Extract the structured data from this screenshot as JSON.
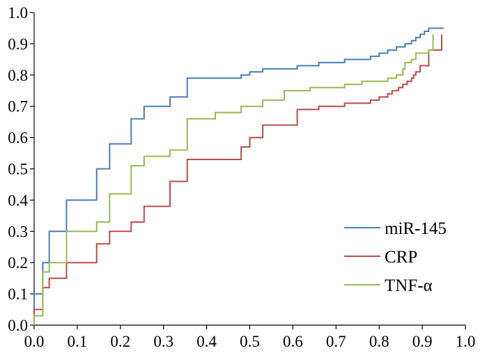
{
  "chart_data": {
    "type": "line",
    "step": true,
    "title": "",
    "xlabel": "",
    "ylabel": "",
    "xlim": [
      0.0,
      1.0
    ],
    "ylim": [
      0.0,
      1.0
    ],
    "x_ticks": [
      "0.0",
      "0.1",
      "0.2",
      "0.3",
      "0.4",
      "0.5",
      "0.6",
      "0.7",
      "0.8",
      "0.9",
      "1.0"
    ],
    "y_ticks": [
      "0.0",
      "0.1",
      "0.2",
      "0.3",
      "0.4",
      "0.5",
      "0.6",
      "0.7",
      "0.8",
      "0.9",
      "1.0"
    ],
    "grid": false,
    "legend_position": "bottom-right",
    "series": [
      {
        "name": "miR-145",
        "color": "#4a7ebb",
        "points": [
          [
            0.0,
            0.0
          ],
          [
            0.0,
            0.1
          ],
          [
            0.02,
            0.1
          ],
          [
            0.02,
            0.2
          ],
          [
            0.035,
            0.2
          ],
          [
            0.035,
            0.3
          ],
          [
            0.075,
            0.3
          ],
          [
            0.075,
            0.4
          ],
          [
            0.145,
            0.4
          ],
          [
            0.145,
            0.5
          ],
          [
            0.175,
            0.5
          ],
          [
            0.175,
            0.58
          ],
          [
            0.225,
            0.58
          ],
          [
            0.225,
            0.66
          ],
          [
            0.255,
            0.66
          ],
          [
            0.255,
            0.7
          ],
          [
            0.315,
            0.7
          ],
          [
            0.315,
            0.73
          ],
          [
            0.355,
            0.73
          ],
          [
            0.355,
            0.79
          ],
          [
            0.48,
            0.79
          ],
          [
            0.48,
            0.8
          ],
          [
            0.5,
            0.8
          ],
          [
            0.5,
            0.81
          ],
          [
            0.53,
            0.81
          ],
          [
            0.53,
            0.82
          ],
          [
            0.61,
            0.82
          ],
          [
            0.61,
            0.83
          ],
          [
            0.66,
            0.83
          ],
          [
            0.66,
            0.84
          ],
          [
            0.72,
            0.84
          ],
          [
            0.72,
            0.85
          ],
          [
            0.78,
            0.85
          ],
          [
            0.78,
            0.86
          ],
          [
            0.8,
            0.86
          ],
          [
            0.8,
            0.87
          ],
          [
            0.82,
            0.87
          ],
          [
            0.82,
            0.88
          ],
          [
            0.84,
            0.88
          ],
          [
            0.84,
            0.89
          ],
          [
            0.86,
            0.89
          ],
          [
            0.86,
            0.9
          ],
          [
            0.875,
            0.9
          ],
          [
            0.875,
            0.91
          ],
          [
            0.885,
            0.91
          ],
          [
            0.885,
            0.92
          ],
          [
            0.895,
            0.92
          ],
          [
            0.895,
            0.93
          ],
          [
            0.905,
            0.93
          ],
          [
            0.905,
            0.94
          ],
          [
            0.915,
            0.94
          ],
          [
            0.915,
            0.95
          ],
          [
            0.95,
            0.95
          ]
        ]
      },
      {
        "name": "CRP",
        "color": "#be4b48",
        "points": [
          [
            0.0,
            0.0
          ],
          [
            0.0,
            0.05
          ],
          [
            0.02,
            0.05
          ],
          [
            0.02,
            0.12
          ],
          [
            0.035,
            0.12
          ],
          [
            0.035,
            0.15
          ],
          [
            0.075,
            0.15
          ],
          [
            0.075,
            0.2
          ],
          [
            0.145,
            0.2
          ],
          [
            0.145,
            0.26
          ],
          [
            0.175,
            0.26
          ],
          [
            0.175,
            0.3
          ],
          [
            0.225,
            0.3
          ],
          [
            0.225,
            0.33
          ],
          [
            0.255,
            0.33
          ],
          [
            0.255,
            0.38
          ],
          [
            0.315,
            0.38
          ],
          [
            0.315,
            0.46
          ],
          [
            0.355,
            0.46
          ],
          [
            0.355,
            0.53
          ],
          [
            0.48,
            0.53
          ],
          [
            0.48,
            0.57
          ],
          [
            0.5,
            0.57
          ],
          [
            0.5,
            0.6
          ],
          [
            0.53,
            0.6
          ],
          [
            0.53,
            0.64
          ],
          [
            0.61,
            0.64
          ],
          [
            0.61,
            0.69
          ],
          [
            0.66,
            0.69
          ],
          [
            0.66,
            0.7
          ],
          [
            0.72,
            0.7
          ],
          [
            0.72,
            0.71
          ],
          [
            0.78,
            0.71
          ],
          [
            0.78,
            0.72
          ],
          [
            0.8,
            0.72
          ],
          [
            0.8,
            0.73
          ],
          [
            0.82,
            0.73
          ],
          [
            0.82,
            0.74
          ],
          [
            0.83,
            0.74
          ],
          [
            0.83,
            0.75
          ],
          [
            0.845,
            0.75
          ],
          [
            0.845,
            0.76
          ],
          [
            0.855,
            0.76
          ],
          [
            0.855,
            0.77
          ],
          [
            0.865,
            0.77
          ],
          [
            0.865,
            0.78
          ],
          [
            0.875,
            0.78
          ],
          [
            0.875,
            0.79
          ],
          [
            0.88,
            0.79
          ],
          [
            0.88,
            0.8
          ],
          [
            0.885,
            0.8
          ],
          [
            0.885,
            0.81
          ],
          [
            0.895,
            0.81
          ],
          [
            0.895,
            0.83
          ],
          [
            0.915,
            0.83
          ],
          [
            0.915,
            0.88
          ],
          [
            0.945,
            0.88
          ],
          [
            0.945,
            0.93
          ]
        ]
      },
      {
        "name": "TNF-α",
        "color": "#98b954",
        "points": [
          [
            0.0,
            0.0
          ],
          [
            0.0,
            0.03
          ],
          [
            0.02,
            0.03
          ],
          [
            0.02,
            0.17
          ],
          [
            0.035,
            0.17
          ],
          [
            0.035,
            0.2
          ],
          [
            0.075,
            0.2
          ],
          [
            0.075,
            0.3
          ],
          [
            0.145,
            0.3
          ],
          [
            0.145,
            0.33
          ],
          [
            0.175,
            0.33
          ],
          [
            0.175,
            0.42
          ],
          [
            0.225,
            0.42
          ],
          [
            0.225,
            0.51
          ],
          [
            0.255,
            0.51
          ],
          [
            0.255,
            0.54
          ],
          [
            0.315,
            0.54
          ],
          [
            0.315,
            0.56
          ],
          [
            0.355,
            0.56
          ],
          [
            0.355,
            0.66
          ],
          [
            0.42,
            0.66
          ],
          [
            0.42,
            0.68
          ],
          [
            0.48,
            0.68
          ],
          [
            0.48,
            0.7
          ],
          [
            0.53,
            0.7
          ],
          [
            0.53,
            0.72
          ],
          [
            0.58,
            0.72
          ],
          [
            0.58,
            0.75
          ],
          [
            0.64,
            0.75
          ],
          [
            0.64,
            0.76
          ],
          [
            0.72,
            0.76
          ],
          [
            0.72,
            0.77
          ],
          [
            0.76,
            0.77
          ],
          [
            0.76,
            0.78
          ],
          [
            0.82,
            0.78
          ],
          [
            0.82,
            0.79
          ],
          [
            0.84,
            0.79
          ],
          [
            0.84,
            0.8
          ],
          [
            0.855,
            0.8
          ],
          [
            0.855,
            0.82
          ],
          [
            0.86,
            0.82
          ],
          [
            0.86,
            0.84
          ],
          [
            0.875,
            0.84
          ],
          [
            0.875,
            0.85
          ],
          [
            0.885,
            0.85
          ],
          [
            0.885,
            0.87
          ],
          [
            0.915,
            0.87
          ],
          [
            0.915,
            0.88
          ],
          [
            0.925,
            0.88
          ],
          [
            0.925,
            0.93
          ]
        ]
      }
    ]
  }
}
